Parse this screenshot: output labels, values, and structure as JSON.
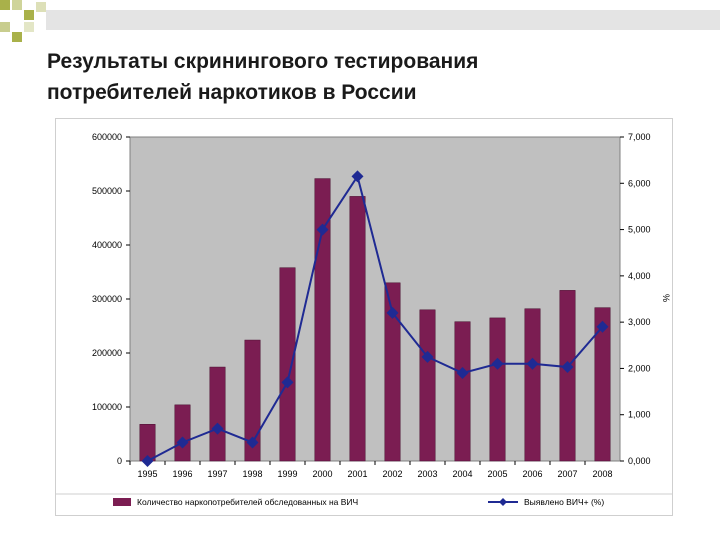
{
  "slide": {
    "title_line1": "Результаты скринингового тестирования",
    "title_line2": "потребителей наркотиков в России"
  },
  "colors": {
    "bar": "#7b1d52",
    "line": "#1f2a93",
    "plot_bg": "#c0c0c0",
    "accent_olive": "#a9b14a"
  },
  "chart_data": {
    "type": "bar",
    "categories": [
      "1995",
      "1996",
      "1997",
      "1998",
      "1999",
      "2000",
      "2001",
      "2002",
      "2003",
      "2004",
      "2005",
      "2006",
      "2007",
      "2008"
    ],
    "series": [
      {
        "name": "Количество наркопотребителей обследованных на ВИЧ",
        "type": "bar",
        "axis": "left",
        "values": [
          68000,
          104000,
          174000,
          224000,
          358000,
          523000,
          490000,
          330000,
          280000,
          258000,
          265000,
          282000,
          316000,
          284000
        ]
      },
      {
        "name": "Выявлено ВИЧ+ (%)",
        "type": "line",
        "axis": "right",
        "values": [
          0.0,
          0.4,
          0.7,
          0.4,
          1.7,
          5.0,
          6.15,
          3.2,
          2.25,
          1.9,
          2.1,
          2.1,
          2.03,
          2.9
        ]
      }
    ],
    "y_left": {
      "lim": [
        0,
        600000
      ],
      "ticks": [
        "0",
        "100000",
        "200000",
        "300000",
        "400000",
        "500000",
        "600000"
      ]
    },
    "y_right": {
      "lim": [
        0,
        7
      ],
      "ticks": [
        "0,000",
        "1,000",
        "2,000",
        "3,000",
        "4,000",
        "5,000",
        "6,000",
        "7,000"
      ],
      "label": "%"
    },
    "grid": false,
    "legend_position": "bottom"
  }
}
